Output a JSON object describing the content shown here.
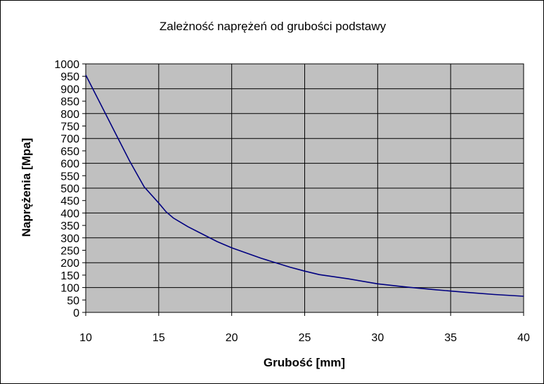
{
  "chart_data": {
    "type": "line",
    "title": "Zależność naprężeń od grubości podstawy",
    "xlabel": "Grubość [mm]",
    "ylabel": "Naprężenia [Mpa]",
    "xlim": [
      10,
      40
    ],
    "ylim": [
      0,
      1000
    ],
    "xticks": [
      10,
      15,
      20,
      25,
      30,
      35,
      40
    ],
    "yticks": [
      0,
      50,
      100,
      150,
      200,
      250,
      300,
      350,
      400,
      450,
      500,
      550,
      600,
      650,
      700,
      750,
      800,
      850,
      900,
      950,
      1000
    ],
    "grid": true,
    "legend": "none",
    "colors": {
      "plot_area": "#c0c0c0",
      "line": "#000080",
      "grid": "#000000"
    },
    "series": [
      {
        "x": [
          10,
          11,
          12,
          13,
          14,
          15,
          15.5,
          16,
          17,
          18,
          19,
          20,
          22,
          24,
          25,
          26,
          28,
          30,
          32,
          34,
          36,
          38,
          40
        ],
        "values": [
          955,
          840,
          725,
          610,
          505,
          440,
          405,
          380,
          345,
          315,
          285,
          260,
          218,
          182,
          166,
          152,
          135,
          115,
          102,
          91,
          81,
          72,
          65
        ]
      }
    ]
  }
}
